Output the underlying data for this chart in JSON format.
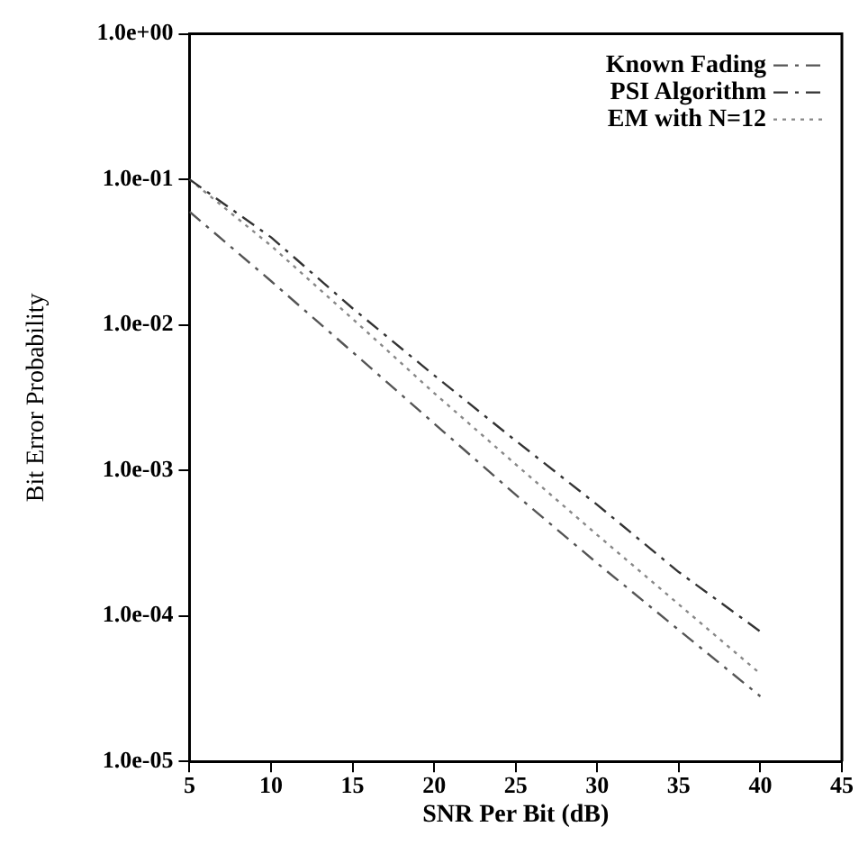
{
  "chart_data": {
    "type": "line",
    "xlabel": "SNR Per Bit (dB)",
    "ylabel": "Bit Error Probability",
    "x": [
      5,
      10,
      15,
      20,
      25,
      30,
      35,
      40
    ],
    "series": [
      {
        "name": "Known Fading",
        "color": "#555555",
        "line_style": "dashed",
        "values": [
          0.06,
          0.02,
          0.0065,
          0.0021,
          0.00068,
          0.00023,
          8e-05,
          2.8e-05
        ]
      },
      {
        "name": "PSI Algorithm",
        "color": "#333333",
        "line_style": "dashed",
        "values": [
          0.1,
          0.04,
          0.013,
          0.0045,
          0.0016,
          0.00058,
          0.0002,
          7.8e-05
        ]
      },
      {
        "name": "EM with N=12",
        "color": "#888888",
        "line_style": "dotted",
        "values": [
          0.1,
          0.035,
          0.011,
          0.0034,
          0.0011,
          0.00036,
          0.00012,
          4e-05
        ]
      }
    ],
    "xlim": [
      5,
      45
    ],
    "xticks": [
      5,
      10,
      15,
      20,
      25,
      30,
      35,
      40,
      45
    ],
    "ylim": [
      1e-05,
      1
    ],
    "yticks": [
      {
        "value": 1e-05,
        "label": "1.0e-05"
      },
      {
        "value": 0.0001,
        "label": "1.0e-04"
      },
      {
        "value": 0.001,
        "label": "1.0e-03"
      },
      {
        "value": 0.01,
        "label": "1.0e-02"
      },
      {
        "value": 0.1,
        "label": "1.0e-01"
      },
      {
        "value": 1,
        "label": "1.0e+00"
      }
    ],
    "log": "y",
    "grid": false,
    "legend": "top right",
    "marker": "none"
  }
}
